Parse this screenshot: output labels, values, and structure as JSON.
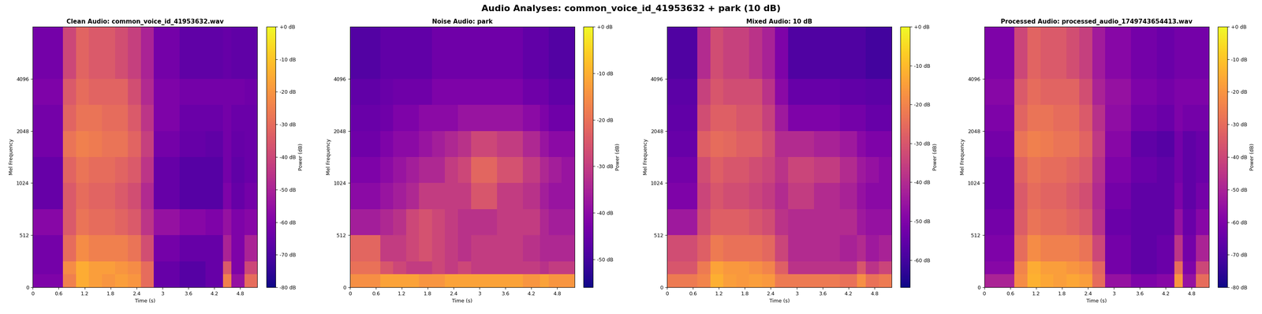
{
  "title": "Audio Analyses: common_voice_id_41953632 + park (10 dB)",
  "chart_data": [
    {
      "type": "heatmap",
      "title": "Clean Audio: common_voice_id_41953632.wav",
      "x_label": "Time (s)",
      "y_label": "Mel Frequency",
      "colorbar_label": "Power (dB)",
      "xlim": [
        0,
        5.2
      ],
      "ylim": [
        0,
        8192
      ],
      "xticks": [
        0,
        0.6,
        1.2,
        1.8,
        2.4,
        3,
        3.6,
        4.2,
        4.8
      ],
      "yticks": [
        0,
        512,
        1024,
        2048,
        4096
      ],
      "time_edges": [
        0,
        0.7,
        1.0,
        1.3,
        1.6,
        1.9,
        2.2,
        2.5,
        2.8,
        3.4,
        4.0,
        4.4,
        4.6,
        4.9,
        5.2
      ],
      "freq_edges": [
        0,
        128,
        256,
        512,
        768,
        1024,
        1448,
        2048,
        2896,
        4096,
        8192
      ],
      "colorbar_range": [
        -80,
        0
      ],
      "colorbar_ticks": [
        {
          "value": 0,
          "label": "+0 dB"
        },
        {
          "value": -10,
          "label": "-10 dB"
        },
        {
          "value": -20,
          "label": "-20 dB"
        },
        {
          "value": -30,
          "label": "-30 dB"
        },
        {
          "value": -40,
          "label": "-40 dB"
        },
        {
          "value": -50,
          "label": "-50 dB"
        },
        {
          "value": -60,
          "label": "-60 dB"
        },
        {
          "value": -70,
          "label": "-70 dB"
        },
        {
          "value": -80,
          "label": "-80 dB"
        }
      ],
      "cells": [
        [
          -60,
          -25,
          -15,
          -18,
          -20,
          -18,
          -20,
          -30,
          -65,
          -68,
          -65,
          -25,
          -55,
          -30
        ],
        [
          -62,
          -22,
          -15,
          -18,
          -18,
          -20,
          -22,
          -30,
          -65,
          -68,
          -65,
          -35,
          -60,
          -40
        ],
        [
          -62,
          -30,
          -22,
          -25,
          -25,
          -25,
          -28,
          -38,
          -62,
          -65,
          -65,
          -50,
          -60,
          -50
        ],
        [
          -58,
          -35,
          -28,
          -30,
          -30,
          -32,
          -35,
          -45,
          -55,
          -58,
          -60,
          -55,
          -60,
          -58
        ],
        [
          -65,
          -35,
          -30,
          -32,
          -32,
          -35,
          -38,
          -48,
          -65,
          -68,
          -68,
          -60,
          -65,
          -62
        ],
        [
          -65,
          -32,
          -28,
          -30,
          -30,
          -32,
          -35,
          -45,
          -65,
          -68,
          -68,
          -62,
          -66,
          -64
        ],
        [
          -62,
          -28,
          -25,
          -26,
          -28,
          -28,
          -32,
          -42,
          -62,
          -65,
          -66,
          -62,
          -65,
          -64
        ],
        [
          -62,
          -32,
          -28,
          -28,
          -30,
          -30,
          -35,
          -45,
          -60,
          -64,
          -64,
          -62,
          -64,
          -64
        ],
        [
          -60,
          -35,
          -30,
          -32,
          -32,
          -32,
          -38,
          -48,
          -60,
          -62,
          -62,
          -62,
          -62,
          -63
        ],
        [
          -62,
          -40,
          -32,
          -35,
          -35,
          -38,
          -42,
          -50,
          -62,
          -66,
          -66,
          -65,
          -66,
          -66
        ]
      ]
    },
    {
      "type": "heatmap",
      "title": "Noise Audio: park",
      "x_label": "Time (s)",
      "y_label": "Mel Frequency",
      "colorbar_label": "Power (dB)",
      "xlim": [
        0,
        5.2
      ],
      "ylim": [
        0,
        8192
      ],
      "xticks": [
        0,
        0.6,
        1.2,
        1.8,
        2.4,
        3,
        3.6,
        4.2,
        4.8
      ],
      "yticks": [
        0,
        512,
        1024,
        2048,
        4096
      ],
      "time_edges": [
        0,
        0.7,
        1.0,
        1.3,
        1.6,
        1.9,
        2.2,
        2.5,
        2.8,
        3.4,
        4.0,
        4.4,
        4.6,
        4.9,
        5.2
      ],
      "freq_edges": [
        0,
        128,
        256,
        512,
        768,
        1024,
        1448,
        2048,
        2896,
        4096,
        8192
      ],
      "colorbar_range": [
        -56,
        0
      ],
      "colorbar_ticks": [
        {
          "value": 0,
          "label": "+0 dB"
        },
        {
          "value": -10,
          "label": "-10 dB"
        },
        {
          "value": -20,
          "label": "-20 dB"
        },
        {
          "value": -30,
          "label": "-30 dB"
        },
        {
          "value": -40,
          "label": "-40 dB"
        },
        {
          "value": -50,
          "label": "-50 dB"
        }
      ],
      "cells": [
        [
          -15,
          -12,
          -12,
          -12,
          -14,
          -14,
          -12,
          -12,
          -12,
          -12,
          -14,
          -12,
          -14,
          -14
        ],
        [
          -20,
          -25,
          -28,
          -30,
          -30,
          -28,
          -30,
          -28,
          -30,
          -30,
          -30,
          -32,
          -30,
          -30
        ],
        [
          -22,
          -30,
          -30,
          -28,
          -26,
          -28,
          -30,
          -32,
          -30,
          -30,
          -32,
          -34,
          -34,
          -34
        ],
        [
          -36,
          -34,
          -32,
          -28,
          -26,
          -28,
          -30,
          -32,
          -32,
          -30,
          -30,
          -34,
          -36,
          -36
        ],
        [
          -40,
          -38,
          -36,
          -34,
          -30,
          -30,
          -30,
          -30,
          -25,
          -30,
          -32,
          -36,
          -38,
          -38
        ],
        [
          -42,
          -40,
          -38,
          -36,
          -34,
          -34,
          -30,
          -28,
          -22,
          -26,
          -30,
          -34,
          -36,
          -38
        ],
        [
          -44,
          -42,
          -40,
          -40,
          -38,
          -36,
          -34,
          -32,
          -28,
          -30,
          -34,
          -38,
          -40,
          -40
        ],
        [
          -45,
          -44,
          -42,
          -42,
          -40,
          -40,
          -40,
          -38,
          -38,
          -38,
          -40,
          -42,
          -44,
          -44
        ],
        [
          -46,
          -45,
          -44,
          -44,
          -44,
          -42,
          -42,
          -42,
          -42,
          -42,
          -44,
          -44,
          -46,
          -46
        ],
        [
          -48,
          -46,
          -46,
          -46,
          -46,
          -44,
          -44,
          -44,
          -44,
          -44,
          -46,
          -46,
          -48,
          -48
        ]
      ]
    },
    {
      "type": "heatmap",
      "title": "Mixed Audio: 10 dB",
      "x_label": "Time (s)",
      "y_label": "Mel Frequency",
      "colorbar_label": "Power (dB)",
      "xlim": [
        0,
        5.2
      ],
      "ylim": [
        0,
        8192
      ],
      "xticks": [
        0,
        0.6,
        1.2,
        1.8,
        2.4,
        3,
        3.6,
        4.2,
        4.8
      ],
      "yticks": [
        0,
        512,
        1024,
        2048,
        4096
      ],
      "time_edges": [
        0,
        0.7,
        1.0,
        1.3,
        1.6,
        1.9,
        2.2,
        2.5,
        2.8,
        3.4,
        4.0,
        4.4,
        4.6,
        4.9,
        5.2
      ],
      "freq_edges": [
        0,
        128,
        256,
        512,
        768,
        1024,
        1448,
        2048,
        2896,
        4096,
        8192
      ],
      "colorbar_range": [
        -67,
        0
      ],
      "colorbar_ticks": [
        {
          "value": 0,
          "label": "+0 dB"
        },
        {
          "value": -10,
          "label": "-10 dB"
        },
        {
          "value": -20,
          "label": "-20 dB"
        },
        {
          "value": -30,
          "label": "-30 dB"
        },
        {
          "value": -40,
          "label": "-40 dB"
        },
        {
          "value": -50,
          "label": "-50 dB"
        },
        {
          "value": -60,
          "label": "-60 dB"
        }
      ],
      "cells": [
        [
          -22,
          -20,
          -12,
          -15,
          -16,
          -15,
          -16,
          -22,
          -22,
          -22,
          -24,
          -18,
          -24,
          -22
        ],
        [
          -30,
          -22,
          -14,
          -16,
          -16,
          -18,
          -20,
          -28,
          -38,
          -38,
          -38,
          -30,
          -38,
          -34
        ],
        [
          -32,
          -28,
          -22,
          -24,
          -24,
          -24,
          -26,
          -34,
          -40,
          -40,
          -42,
          -40,
          -44,
          -42
        ],
        [
          -44,
          -32,
          -28,
          -28,
          -28,
          -30,
          -32,
          -38,
          -40,
          -40,
          -40,
          -44,
          -46,
          -46
        ],
        [
          -50,
          -34,
          -30,
          -32,
          -32,
          -34,
          -36,
          -40,
          -36,
          -40,
          -42,
          -46,
          -48,
          -48
        ],
        [
          -52,
          -32,
          -28,
          -30,
          -30,
          -32,
          -34,
          -38,
          -34,
          -36,
          -40,
          -44,
          -46,
          -48
        ],
        [
          -54,
          -28,
          -25,
          -26,
          -28,
          -28,
          -32,
          -40,
          -40,
          -42,
          -44,
          -48,
          -50,
          -50
        ],
        [
          -55,
          -32,
          -28,
          -28,
          -30,
          -30,
          -35,
          -44,
          -50,
          -50,
          -52,
          -52,
          -54,
          -54
        ],
        [
          -56,
          -35,
          -30,
          -32,
          -32,
          -32,
          -38,
          -48,
          -54,
          -54,
          -55,
          -55,
          -56,
          -56
        ],
        [
          -58,
          -40,
          -32,
          -35,
          -35,
          -38,
          -42,
          -50,
          -58,
          -58,
          -58,
          -58,
          -60,
          -60
        ]
      ]
    },
    {
      "type": "heatmap",
      "title": "Processed Audio: processed_audio_1749743654413.wav",
      "x_label": "Time (s)",
      "y_label": "Mel Frequency",
      "colorbar_label": "Power (dB)",
      "xlim": [
        0,
        5.2
      ],
      "ylim": [
        0,
        8192
      ],
      "xticks": [
        0,
        0.6,
        1.2,
        1.8,
        2.4,
        3,
        3.6,
        4.2,
        4.8
      ],
      "yticks": [
        0,
        512,
        1024,
        2048,
        4096
      ],
      "time_edges": [
        0,
        0.7,
        1.0,
        1.3,
        1.6,
        1.9,
        2.2,
        2.5,
        2.8,
        3.4,
        4.0,
        4.4,
        4.6,
        4.9,
        5.2
      ],
      "freq_edges": [
        0,
        128,
        256,
        512,
        768,
        1024,
        1448,
        2048,
        2896,
        4096,
        8192
      ],
      "colorbar_range": [
        -80,
        0
      ],
      "colorbar_ticks": [
        {
          "value": 0,
          "label": "+0 dB"
        },
        {
          "value": -10,
          "label": "-10 dB"
        },
        {
          "value": -20,
          "label": "-20 dB"
        },
        {
          "value": -30,
          "label": "-30 dB"
        },
        {
          "value": -40,
          "label": "-40 dB"
        },
        {
          "value": -50,
          "label": "-50 dB"
        },
        {
          "value": -60,
          "label": "-60 dB"
        },
        {
          "value": -70,
          "label": "-70 dB"
        },
        {
          "value": -80,
          "label": "-80 dB"
        }
      ],
      "cells": [
        [
          -50,
          -22,
          -14,
          -16,
          -18,
          -16,
          -18,
          -30,
          -55,
          -60,
          -58,
          -20,
          -55,
          -30
        ],
        [
          -58,
          -24,
          -15,
          -18,
          -18,
          -20,
          -22,
          -32,
          -62,
          -66,
          -64,
          -30,
          -60,
          -40
        ],
        [
          -60,
          -30,
          -22,
          -25,
          -25,
          -25,
          -28,
          -40,
          -62,
          -66,
          -64,
          -45,
          -62,
          -50
        ],
        [
          -62,
          -34,
          -28,
          -30,
          -30,
          -32,
          -35,
          -46,
          -64,
          -66,
          -66,
          -55,
          -64,
          -58
        ],
        [
          -64,
          -35,
          -30,
          -32,
          -32,
          -35,
          -38,
          -48,
          -62,
          -66,
          -66,
          -60,
          -66,
          -62
        ],
        [
          -64,
          -32,
          -28,
          -30,
          -30,
          -32,
          -35,
          -46,
          -60,
          -64,
          -66,
          -62,
          -66,
          -64
        ],
        [
          -62,
          -28,
          -25,
          -26,
          -28,
          -28,
          -32,
          -44,
          -58,
          -66,
          -68,
          -62,
          -66,
          -64
        ],
        [
          -60,
          -32,
          -28,
          -28,
          -30,
          -30,
          -35,
          -46,
          -56,
          -62,
          -64,
          -60,
          -62,
          -62
        ],
        [
          -58,
          -35,
          -30,
          -32,
          -32,
          -32,
          -38,
          -50,
          -55,
          -60,
          -62,
          -60,
          -60,
          -60
        ],
        [
          -60,
          -40,
          -32,
          -35,
          -35,
          -38,
          -42,
          -52,
          -58,
          -62,
          -64,
          -62,
          -62,
          -62
        ]
      ]
    }
  ]
}
